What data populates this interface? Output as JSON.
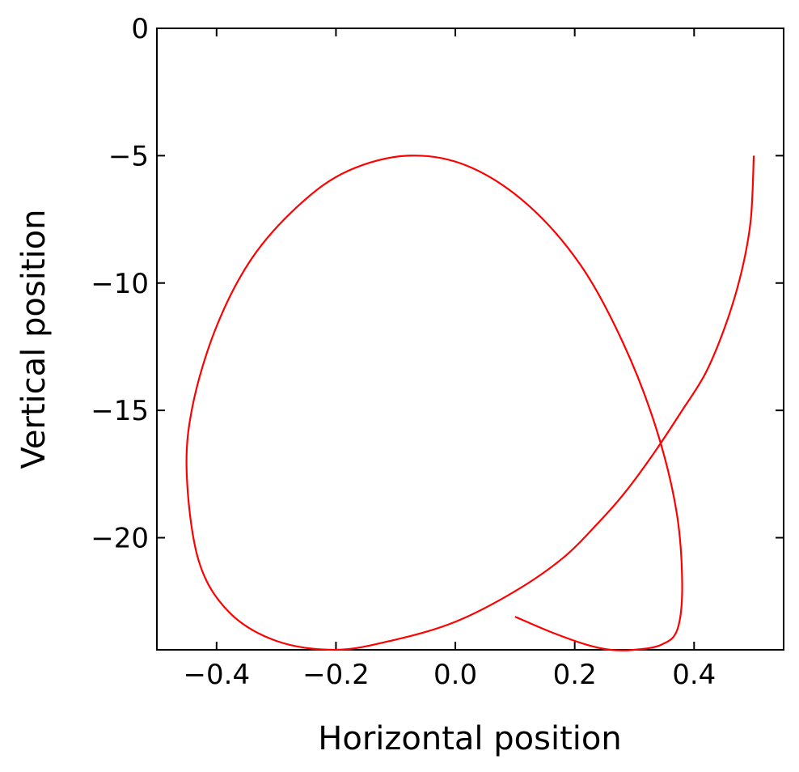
{
  "chart_data": {
    "type": "line",
    "title": "",
    "xlabel": "Horizontal position",
    "ylabel": "Vertical position",
    "xlim": [
      -0.5,
      0.55
    ],
    "ylim": [
      -24.4,
      0
    ],
    "xticks": [
      -0.4,
      -0.2,
      0.0,
      0.2,
      0.4
    ],
    "xtick_labels": [
      "−0.4",
      "−0.2",
      "0.0",
      "0.2",
      "0.4"
    ],
    "yticks": [
      0,
      -5,
      -10,
      -15,
      -20
    ],
    "ytick_labels": [
      "0",
      "−5",
      "−10",
      "−15",
      "−20"
    ],
    "grid": false,
    "legend": "none",
    "series": [
      {
        "color": "#ff0000",
        "x": [
          0.5,
          0.495,
          0.48,
          0.455,
          0.42,
          0.38,
          0.335,
          0.285,
          0.24,
          0.18,
          0.1,
          0.0,
          -0.1,
          -0.2,
          -0.3,
          -0.38,
          -0.43,
          -0.45,
          -0.44,
          -0.4,
          -0.34,
          -0.26,
          -0.18,
          -0.08,
          0.02,
          0.12,
          0.21,
          0.28,
          0.335,
          0.37,
          0.38,
          0.372,
          0.345,
          0.3,
          0.26,
          0.22,
          0.16,
          0.1
        ],
        "y": [
          -5,
          -7.5,
          -9.5,
          -11.5,
          -13.5,
          -15.0,
          -16.6,
          -18.2,
          -19.4,
          -20.8,
          -22.1,
          -23.3,
          -24.0,
          -24.4,
          -24.05,
          -22.9,
          -20.9,
          -17.5,
          -14.8,
          -11.7,
          -9.0,
          -6.9,
          -5.6,
          -5.0,
          -5.4,
          -6.9,
          -9.3,
          -12.3,
          -15.6,
          -18.9,
          -21.8,
          -23.6,
          -24.2,
          -24.4,
          -24.4,
          -24.2,
          -23.7,
          -23.1
        ]
      }
    ]
  }
}
